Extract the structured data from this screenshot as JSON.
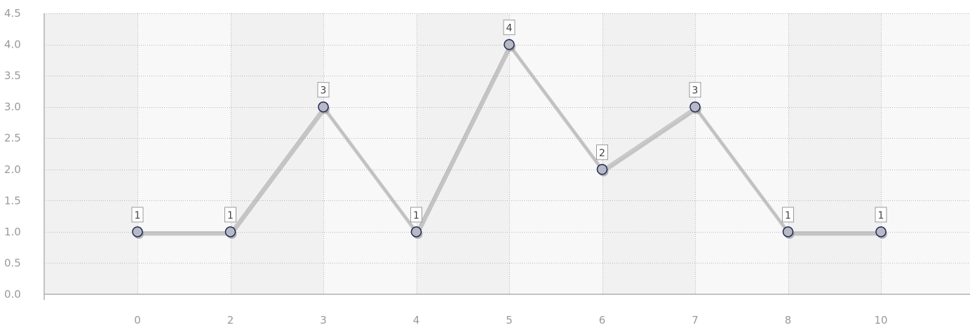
{
  "chart_data": {
    "type": "line",
    "categories": [
      "0",
      "2",
      "3",
      "4",
      "5",
      "6",
      "7",
      "8",
      "10"
    ],
    "values": [
      1,
      1,
      3,
      1,
      4,
      2,
      3,
      1,
      1
    ],
    "data_labels": [
      "1",
      "1",
      "3",
      "1",
      "4",
      "2",
      "3",
      "1",
      "1"
    ],
    "y_ticks": [
      "0.0",
      "0.5",
      "1.0",
      "1.5",
      "2.0",
      "2.5",
      "3.0",
      "3.5",
      "4.0",
      "4.5"
    ],
    "ylim": [
      0,
      4.5
    ],
    "title": "",
    "xlabel": "",
    "ylabel": "",
    "grid": true,
    "alternating_column_bands": true,
    "colors": {
      "line": "#bdbdbd",
      "point_fill": "#b9b9c4",
      "point_stroke": "#1f2a5a",
      "band_light": "#f8f8f8",
      "band_dark": "#f1f1f1"
    }
  }
}
